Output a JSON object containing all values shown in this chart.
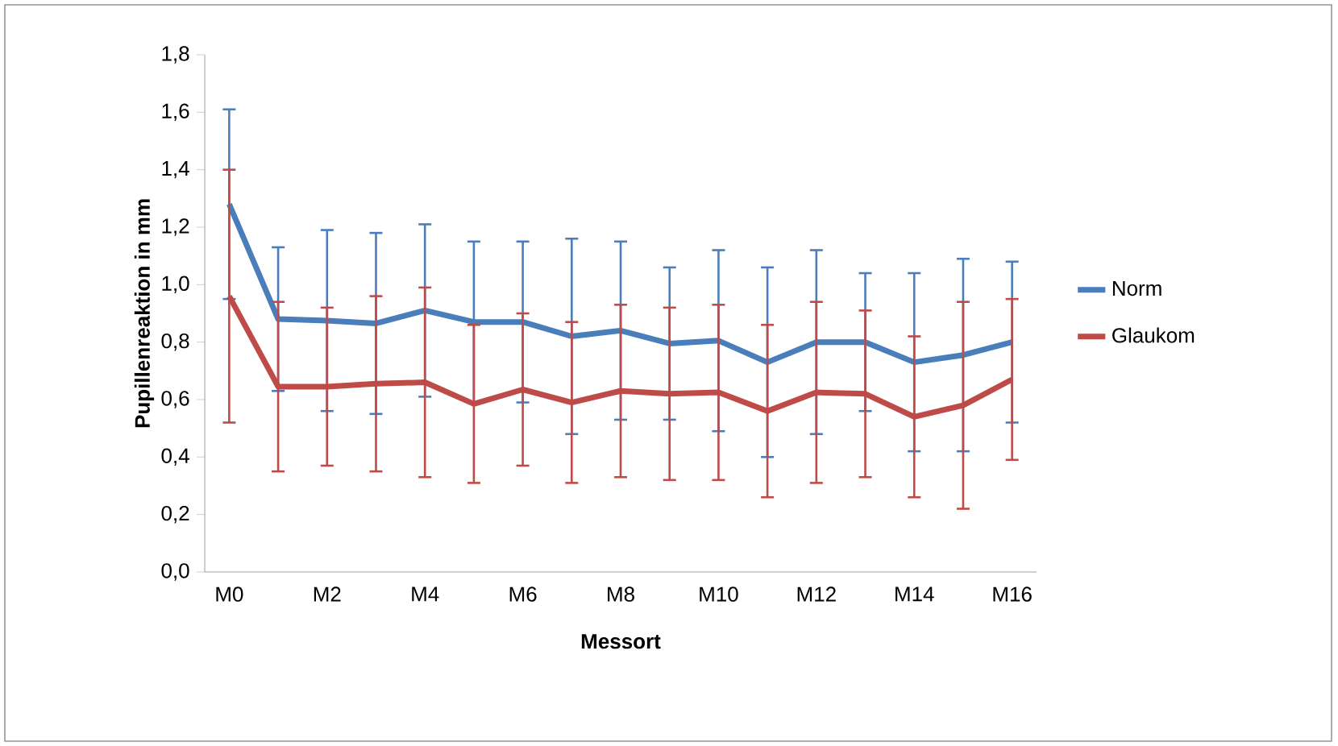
{
  "chart_data": {
    "type": "line",
    "xlabel": "Messort",
    "ylabel": "Pupillenreaktion in mm",
    "categories": [
      "M0",
      null,
      "M2",
      null,
      "M4",
      null,
      "M6",
      null,
      "M8",
      null,
      "M10",
      null,
      "M12",
      null,
      "M14",
      null,
      "M16"
    ],
    "series": [
      {
        "name": "Norm",
        "color": "#4a7ebb",
        "values": [
          1.28,
          0.88,
          0.875,
          0.865,
          0.91,
          0.87,
          0.87,
          0.82,
          0.84,
          0.795,
          0.805,
          0.73,
          0.8,
          0.8,
          0.73,
          0.755,
          0.8
        ],
        "errors": [
          0.33,
          0.25,
          0.315,
          0.315,
          0.3,
          0.28,
          0.28,
          0.34,
          0.31,
          0.265,
          0.315,
          0.33,
          0.32,
          0.24,
          0.31,
          0.335,
          0.28
        ]
      },
      {
        "name": "Glaukom",
        "color": "#be4b48",
        "values": [
          0.96,
          0.645,
          0.645,
          0.655,
          0.66,
          0.585,
          0.635,
          0.59,
          0.63,
          0.62,
          0.625,
          0.56,
          0.625,
          0.62,
          0.54,
          0.58,
          0.67
        ],
        "errors": [
          0.44,
          0.295,
          0.275,
          0.305,
          0.33,
          0.275,
          0.265,
          0.28,
          0.3,
          0.3,
          0.305,
          0.3,
          0.315,
          0.29,
          0.28,
          0.36,
          0.28
        ]
      }
    ],
    "ylim": [
      0,
      1.8
    ],
    "yticks": [
      {
        "value": 0,
        "label": "0,0"
      },
      {
        "value": 0.2,
        "label": "0,2"
      },
      {
        "value": 0.4,
        "label": "0,4"
      },
      {
        "value": 0.6,
        "label": "0,6"
      },
      {
        "value": 0.8,
        "label": "0,8"
      },
      {
        "value": 1.0,
        "label": "1,0"
      },
      {
        "value": 1.2,
        "label": "1,2"
      },
      {
        "value": 1.4,
        "label": "1,4"
      },
      {
        "value": 1.6,
        "label": "1,6"
      },
      {
        "value": 1.8,
        "label": "1,8"
      }
    ],
    "grid": false,
    "legend": "right",
    "marker": "none",
    "line_style": "solid"
  }
}
